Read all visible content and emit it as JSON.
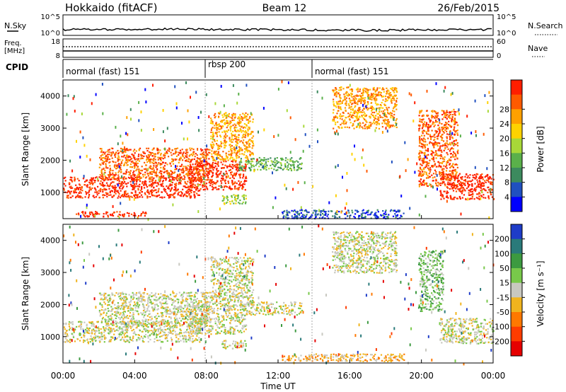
{
  "header": {
    "station": "Hokkaido (fitACF)",
    "beam": "Beam 12",
    "date": "26/Feb/2015"
  },
  "noise_panel": {
    "left_label": "N.Sky",
    "left_ticks": [
      "10^5",
      "10^0"
    ],
    "right_label": "N.Search",
    "right_ticks": [
      "10^5",
      "10^0"
    ]
  },
  "freq_panel": {
    "left_label_line1": "Freq.",
    "left_label_line2": "[MHz]",
    "left_ticks": [
      "18",
      "8"
    ],
    "right_label": "Nave",
    "right_ticks": [
      "60",
      "0"
    ]
  },
  "cpid_panel": {
    "label": "CPID",
    "segments": [
      {
        "label": "normal (fast) 151",
        "start": "00:00"
      },
      {
        "label": "rbsp 200",
        "start": "08:00"
      },
      {
        "label": "normal (fast) 151",
        "start": "14:00"
      }
    ]
  },
  "x_axis": {
    "label": "Time UT",
    "ticks": [
      "00:00",
      "04:00",
      "08:00",
      "12:00",
      "16:00",
      "20:00",
      "00:00"
    ],
    "range_hours": [
      0,
      24
    ]
  },
  "colors": {
    "ground_scatter": "#c8c8c0"
  },
  "chart_data": [
    {
      "type": "heatmap",
      "quantity": "Power",
      "ylabel": "Slant Range [km]",
      "ylim": [
        180,
        4500
      ],
      "yticks": [
        1000,
        2000,
        3000,
        4000
      ],
      "colorbar": {
        "label": "Power [dB]",
        "ticks": [
          "4",
          "8",
          "12",
          "16",
          "20",
          "24",
          "28"
        ],
        "colors": [
          "#0000ff",
          "#2050c0",
          "#3c8a5e",
          "#5ab04a",
          "#a8d838",
          "#ffd200",
          "#ffa000",
          "#ff5a00",
          "#ff1e00"
        ]
      },
      "echo_regions": [
        {
          "hours": [
            0.0,
            7.6
          ],
          "range_km": [
            850,
            1500
          ],
          "level": 8
        },
        {
          "hours": [
            2.0,
            8.2
          ],
          "range_km": [
            1400,
            2400
          ],
          "level": 7
        },
        {
          "hours": [
            7.0,
            10.2
          ],
          "range_km": [
            1100,
            2000
          ],
          "level": 8
        },
        {
          "hours": [
            8.2,
            10.6
          ],
          "range_km": [
            2000,
            3500
          ],
          "level": 6
        },
        {
          "hours": [
            9.8,
            13.3
          ],
          "range_km": [
            1700,
            2100
          ],
          "level": 3
        },
        {
          "hours": [
            15.0,
            18.6
          ],
          "range_km": [
            3000,
            4300
          ],
          "level": 6
        },
        {
          "hours": [
            19.8,
            22.0
          ],
          "range_km": [
            1200,
            3600
          ],
          "level": 7
        },
        {
          "hours": [
            21.0,
            24.0
          ],
          "range_km": [
            800,
            1600
          ],
          "level": 8
        },
        {
          "hours": [
            0.6,
            4.6
          ],
          "range_km": [
            260,
            420
          ],
          "level": 8
        },
        {
          "hours": [
            8.8,
            10.2
          ],
          "range_km": [
            650,
            950
          ],
          "level": 4
        },
        {
          "hours": [
            12.2,
            19.0
          ],
          "range_km": [
            200,
            480
          ],
          "level": 1
        }
      ]
    },
    {
      "type": "heatmap",
      "quantity": "Velocity",
      "ylabel": "Slant Range [km]",
      "ylim": [
        180,
        4500
      ],
      "yticks": [
        1000,
        2000,
        3000,
        4000
      ],
      "colorbar": {
        "label": "Velocity [m s⁻¹]",
        "ticks": [
          "200",
          "100",
          "50",
          "15",
          "-15",
          "-50",
          "-100",
          "-200"
        ],
        "colors": [
          "#1e3cc8",
          "#2a7a7a",
          "#3c9a40",
          "#78c84a",
          "#c8c8c0",
          "#f0b41e",
          "#ff7800",
          "#ff3c00",
          "#e60000"
        ]
      },
      "echo_regions": [
        {
          "hours": [
            0.0,
            7.6
          ],
          "range_km": [
            850,
            1500
          ],
          "level": 4
        },
        {
          "hours": [
            2.0,
            8.2
          ],
          "range_km": [
            1400,
            2400
          ],
          "level": 4
        },
        {
          "hours": [
            7.0,
            10.2
          ],
          "range_km": [
            1100,
            2000
          ],
          "level": 4
        },
        {
          "hours": [
            8.2,
            10.6
          ],
          "range_km": [
            2000,
            3500
          ],
          "level": 4
        },
        {
          "hours": [
            9.8,
            13.3
          ],
          "range_km": [
            1700,
            2100
          ],
          "level": 4
        },
        {
          "hours": [
            15.0,
            18.6
          ],
          "range_km": [
            3000,
            4300
          ],
          "level": 4
        },
        {
          "hours": [
            19.8,
            21.2
          ],
          "range_km": [
            1800,
            3700
          ],
          "level": 3
        },
        {
          "hours": [
            21.0,
            24.0
          ],
          "range_km": [
            800,
            1600
          ],
          "level": 4
        },
        {
          "hours": [
            12.2,
            19.0
          ],
          "range_km": [
            250,
            480
          ],
          "level": 5
        },
        {
          "hours": [
            8.8,
            10.2
          ],
          "range_km": [
            650,
            900
          ],
          "level": 4
        }
      ]
    }
  ]
}
